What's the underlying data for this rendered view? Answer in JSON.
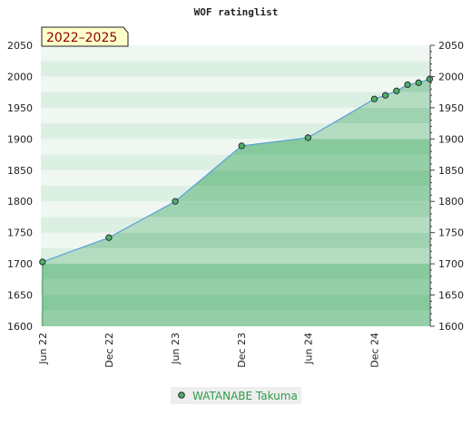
{
  "chart_data": {
    "type": "area",
    "title": "WOF ratinglist",
    "period_label": "2022–2025",
    "xlabel": "",
    "ylabel": "",
    "ylim": [
      1600,
      2050
    ],
    "y_ticks": [
      1600,
      1650,
      1700,
      1750,
      1800,
      1850,
      1900,
      1950,
      2000,
      2050
    ],
    "y_tick_labels": [
      "1600",
      "1650",
      "1700",
      "1750",
      "1800",
      "1850",
      "1900",
      "1950",
      "2000",
      "2050"
    ],
    "x_ticks": [
      "2022-06",
      "2022-12",
      "2023-06",
      "2023-12",
      "2024-06",
      "2024-12"
    ],
    "x_tick_labels": [
      "Jun 22",
      "Dec 22",
      "Jun 23",
      "Dec 23",
      "Jun 24",
      "Dec 24"
    ],
    "xlim": [
      "2022-06",
      "2025-05"
    ],
    "series": [
      {
        "name": "WATANABE Takuma",
        "points": [
          {
            "x": "2022-06",
            "y": 1703
          },
          {
            "x": "2022-12",
            "y": 1742
          },
          {
            "x": "2023-06",
            "y": 1800
          },
          {
            "x": "2023-12",
            "y": 1889
          },
          {
            "x": "2024-06",
            "y": 1902
          },
          {
            "x": "2024-12",
            "y": 1964
          },
          {
            "x": "2025-01",
            "y": 1970
          },
          {
            "x": "2025-02",
            "y": 1977
          },
          {
            "x": "2025-03",
            "y": 1987
          },
          {
            "x": "2025-04",
            "y": 1990
          },
          {
            "x": "2025-05",
            "y": 1996
          }
        ]
      }
    ],
    "colors": {
      "line": "#5aa0d8",
      "fill": "#5cb87a",
      "marker": "#4caf6a",
      "band_light_a": "#f0f7f2",
      "band_light_b": "#dcefe3",
      "band_dark_a": "#b4dcc0",
      "band_dark_b": "#9fd2b0",
      "legend_text": "#2e9c4a",
      "period_bg": "#ffffcc"
    },
    "grid": true,
    "legend_position": "bottom"
  }
}
